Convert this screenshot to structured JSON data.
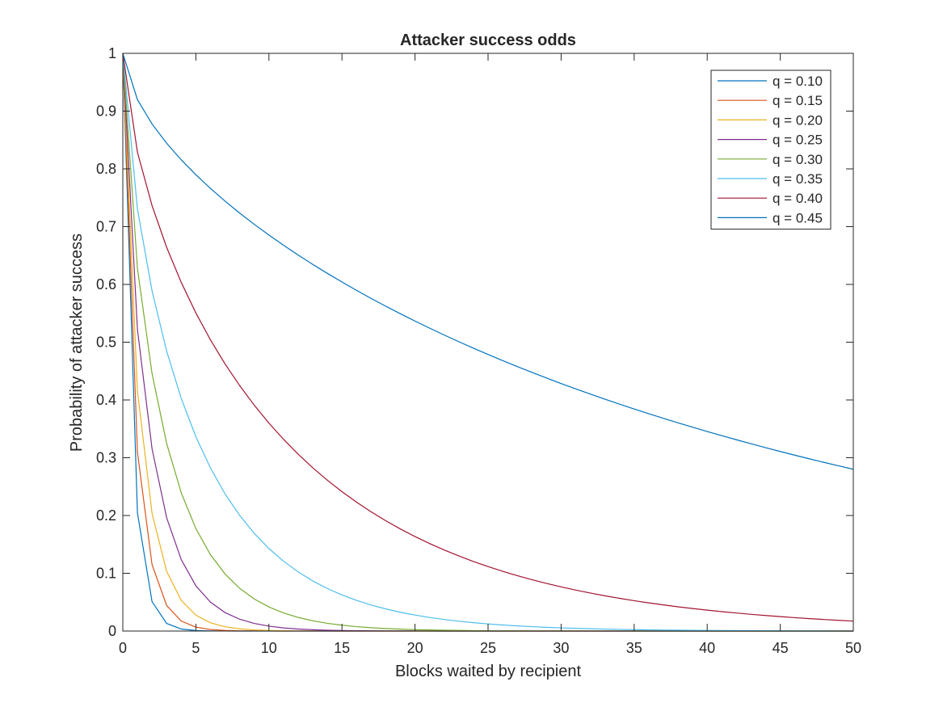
{
  "chart_data": {
    "type": "line",
    "title": "Attacker success odds",
    "xlabel": "Blocks waited by recipient",
    "ylabel": "Probability of attacker success",
    "xlim": [
      0,
      50
    ],
    "ylim": [
      0,
      1
    ],
    "xticks": [
      0,
      5,
      10,
      15,
      20,
      25,
      30,
      35,
      40,
      45,
      50
    ],
    "yticks": [
      0,
      0.1,
      0.2,
      0.3,
      0.4,
      0.5,
      0.6,
      0.7,
      0.8,
      0.9,
      1
    ],
    "xtick_labels": [
      "0",
      "5",
      "10",
      "15",
      "20",
      "25",
      "30",
      "35",
      "40",
      "45",
      "50"
    ],
    "ytick_labels": [
      "0",
      "0.1",
      "0.2",
      "0.3",
      "0.4",
      "0.5",
      "0.6",
      "0.7",
      "0.8",
      "0.9",
      "1"
    ],
    "grid": false,
    "legend_position": "top-right",
    "x": [
      0,
      1,
      2,
      3,
      4,
      5,
      6,
      7,
      8,
      9,
      10,
      11,
      12,
      13,
      14,
      15,
      16,
      17,
      18,
      19,
      20,
      21,
      22,
      23,
      24,
      25,
      26,
      27,
      28,
      29,
      30,
      31,
      32,
      33,
      34,
      35,
      36,
      37,
      38,
      39,
      40,
      41,
      42,
      43,
      44,
      45,
      46,
      47,
      48,
      49,
      50
    ],
    "series": [
      {
        "name": "q = 0.10",
        "color": "#0072BD",
        "q": 0.1
      },
      {
        "name": "q = 0.15",
        "color": "#D95319",
        "q": 0.15
      },
      {
        "name": "q = 0.20",
        "color": "#EDB120",
        "q": 0.2
      },
      {
        "name": "q = 0.25",
        "color": "#7E2F8E",
        "q": 0.25
      },
      {
        "name": "q = 0.30",
        "color": "#77AC30",
        "q": 0.3
      },
      {
        "name": "q = 0.35",
        "color": "#4DBEEE",
        "q": 0.35
      },
      {
        "name": "q = 0.40",
        "color": "#A2142F",
        "q": 0.4
      },
      {
        "name": "q = 0.45",
        "color": "#0072BD",
        "q": 0.45
      }
    ]
  }
}
